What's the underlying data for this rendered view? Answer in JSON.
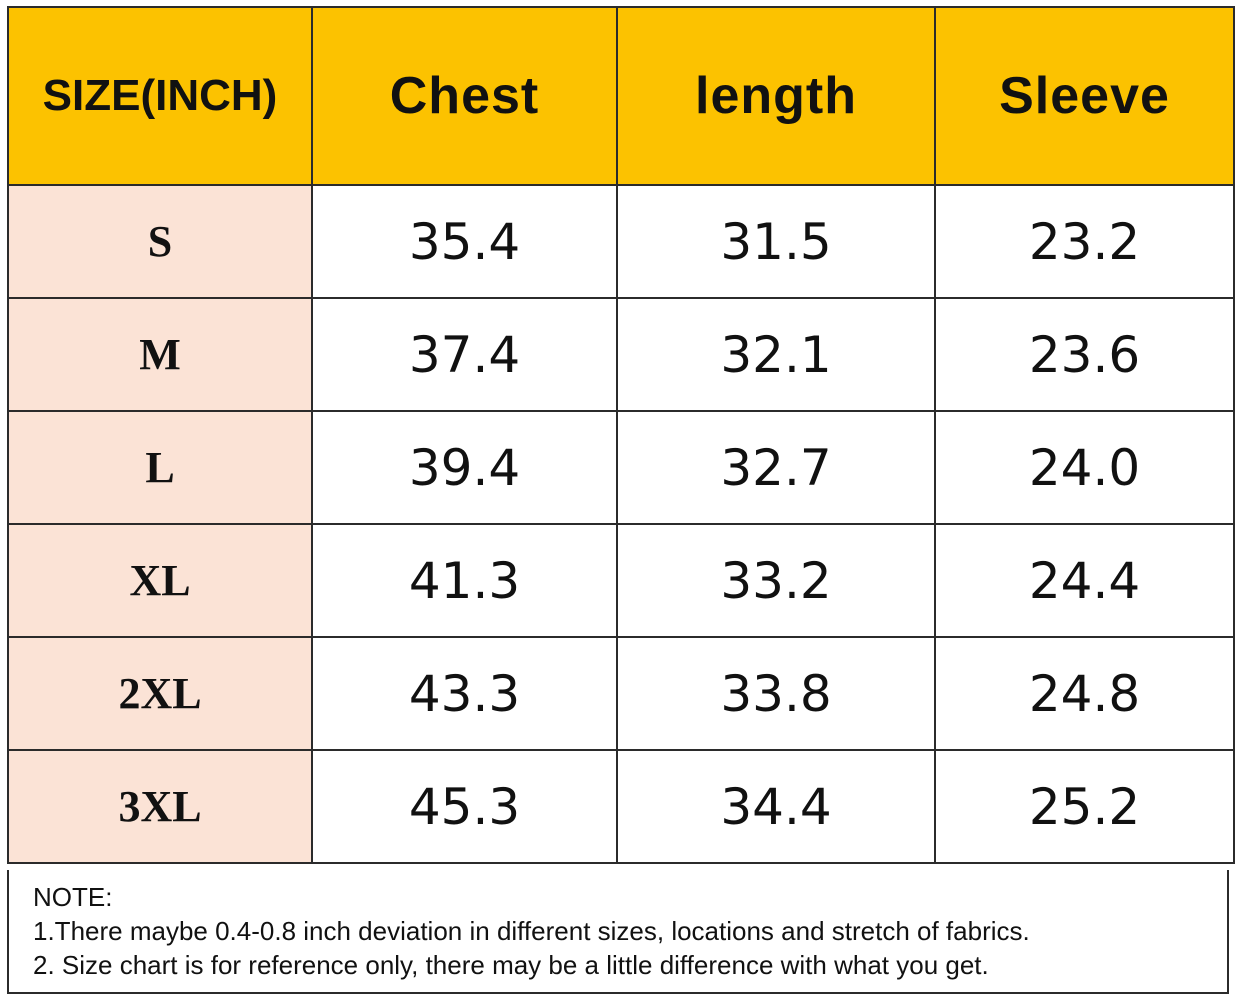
{
  "table": {
    "headers": [
      "SIZE(INCH)",
      "Chest",
      "length",
      "Sleeve"
    ],
    "rows": [
      {
        "size": "S",
        "chest": "35.4",
        "length": "31.5",
        "sleeve": "23.2"
      },
      {
        "size": "M",
        "chest": "37.4",
        "length": "32.1",
        "sleeve": "23.6"
      },
      {
        "size": "L",
        "chest": "39.4",
        "length": "32.7",
        "sleeve": "24.0"
      },
      {
        "size": "XL",
        "chest": "41.3",
        "length": "33.2",
        "sleeve": "24.4"
      },
      {
        "size": "2XL",
        "chest": "43.3",
        "length": "33.8",
        "sleeve": "24.8"
      },
      {
        "size": "3XL",
        "chest": "45.3",
        "length": "34.4",
        "sleeve": "25.2"
      }
    ]
  },
  "note": {
    "title": "NOTE:",
    "lines": [
      "1.There maybe 0.4-0.8 inch deviation in different sizes, locations and stretch of fabrics.",
      "2. Size chart is for reference only, there may be a little difference with what you get."
    ]
  },
  "colors": {
    "header_bg": "#fcc200",
    "size_column_bg": "#fbe3d6",
    "border": "#2b2b2b"
  }
}
